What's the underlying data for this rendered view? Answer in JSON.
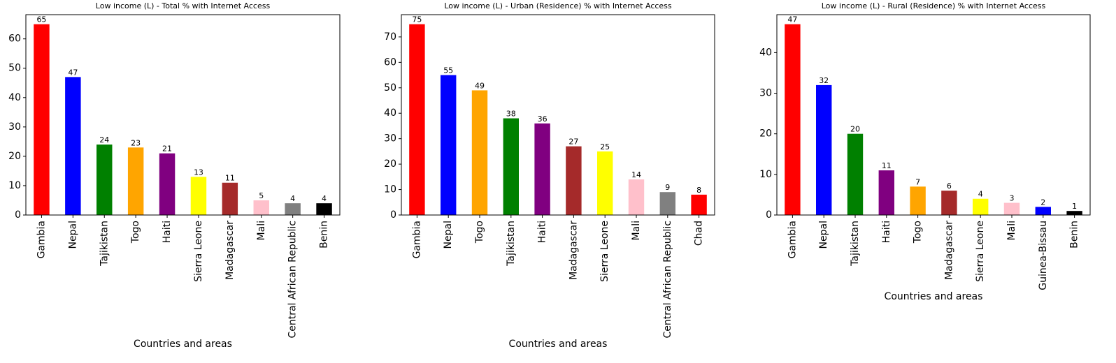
{
  "chart_data": [
    {
      "type": "bar",
      "title": "Low income (L) - Total % with Internet Access",
      "xlabel": "Countries and areas",
      "ylabel": "",
      "categories": [
        "Gambia",
        "Nepal",
        "Tajikistan",
        "Togo",
        "Haiti",
        "Sierra Leone",
        "Madagascar",
        "Mali",
        "Central African Republic",
        "Benin"
      ],
      "values": [
        65,
        47,
        24,
        23,
        21,
        13,
        11,
        5,
        4,
        4
      ],
      "colors": [
        "#ff0000",
        "#0000ff",
        "#008000",
        "#ffa500",
        "#800080",
        "#ffff00",
        "#a52a2a",
        "#ffc0cb",
        "#808080",
        "#000000"
      ],
      "ylim": [
        0,
        68.25
      ],
      "yticks": [
        0,
        10,
        20,
        30,
        40,
        50,
        60
      ],
      "grid": false,
      "legend": "none"
    },
    {
      "type": "bar",
      "title": "Low income (L) - Urban (Residence) % with Internet Access",
      "xlabel": "Countries and areas",
      "ylabel": "",
      "categories": [
        "Gambia",
        "Nepal",
        "Togo",
        "Tajikistan",
        "Haiti",
        "Madagascar",
        "Sierra Leone",
        "Mali",
        "Central African Republic",
        "Chad"
      ],
      "values": [
        75,
        55,
        49,
        38,
        36,
        27,
        25,
        14,
        9,
        8
      ],
      "colors": [
        "#ff0000",
        "#0000ff",
        "#ffa500",
        "#008000",
        "#800080",
        "#a52a2a",
        "#ffff00",
        "#ffc0cb",
        "#808080",
        "#ff0000"
      ],
      "ylim": [
        0,
        78.75
      ],
      "yticks": [
        0,
        10,
        20,
        30,
        40,
        50,
        60,
        70
      ],
      "grid": false,
      "legend": "none"
    },
    {
      "type": "bar",
      "title": "Low income (L) - Rural (Residence) % with Internet Access",
      "xlabel": "Countries and areas",
      "ylabel": "",
      "categories": [
        "Gambia",
        "Nepal",
        "Tajikistan",
        "Haiti",
        "Togo",
        "Madagascar",
        "Sierra Leone",
        "Mali",
        "Guinea-Bissau",
        "Benin"
      ],
      "values": [
        47,
        32,
        20,
        11,
        7,
        6,
        4,
        3,
        2,
        1
      ],
      "colors": [
        "#ff0000",
        "#0000ff",
        "#008000",
        "#800080",
        "#ffa500",
        "#a52a2a",
        "#ffff00",
        "#ffc0cb",
        "#0000ff",
        "#000000"
      ],
      "ylim": [
        0,
        49.35
      ],
      "yticks": [
        0,
        10,
        20,
        30,
        40
      ],
      "grid": false,
      "legend": "none"
    }
  ]
}
